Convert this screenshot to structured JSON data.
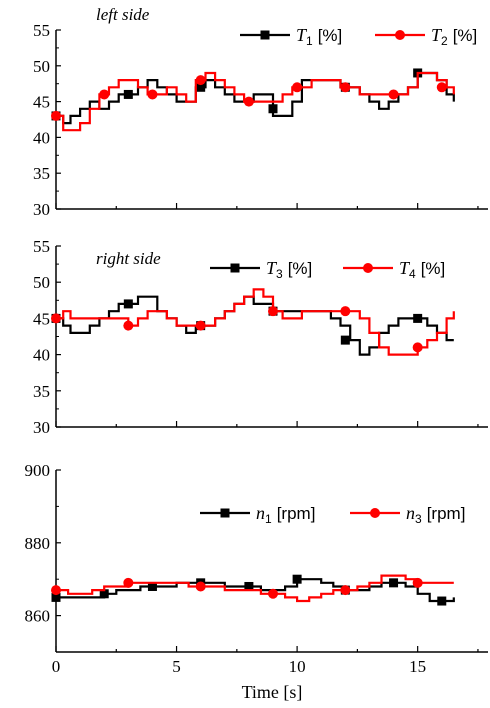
{
  "chart_data": [
    {
      "type": "line",
      "panel_label": "left side",
      "xlim": [
        0,
        18
      ],
      "ylim": [
        30,
        55
      ],
      "yticks": [
        30,
        35,
        40,
        45,
        50,
        55
      ],
      "xticks": [
        0,
        5,
        10,
        15
      ],
      "grid": false,
      "legend_position": "top-right",
      "series": [
        {
          "name_var": "T",
          "name_sub": "1",
          "name_unit": "[%]",
          "color": "#000000",
          "marker": "square",
          "x": [
            0,
            0.3,
            0.6,
            1.0,
            1.4,
            1.8,
            2.2,
            2.6,
            3.0,
            3.4,
            3.8,
            4.2,
            4.6,
            5.0,
            5.4,
            5.8,
            6.2,
            6.6,
            7.0,
            7.4,
            7.8,
            8.2,
            8.6,
            9.0,
            9.4,
            9.8,
            10.2,
            10.6,
            11.0,
            11.4,
            11.8,
            12.2,
            12.6,
            13.0,
            13.4,
            13.8,
            14.2,
            14.6,
            15.0,
            15.4,
            15.8,
            16.2,
            16.5
          ],
          "y": [
            43,
            42,
            43,
            44,
            45,
            44,
            45,
            46,
            46,
            47,
            48,
            47,
            46,
            45,
            45,
            47,
            48,
            47,
            46,
            45,
            45,
            46,
            46,
            43,
            43,
            45,
            48,
            48,
            48,
            48,
            47,
            47,
            46,
            45,
            44,
            45,
            46,
            47,
            49,
            49,
            48,
            46,
            45
          ],
          "marker_x": [
            0,
            3,
            6,
            9,
            12,
            15
          ],
          "marker_y": [
            43,
            46,
            47,
            44,
            47,
            49
          ]
        },
        {
          "name_var": "T",
          "name_sub": "2",
          "name_unit": "[%]",
          "color": "#ff0000",
          "marker": "circle",
          "x": [
            0,
            0.3,
            0.6,
            1.0,
            1.4,
            1.8,
            2.2,
            2.6,
            3.0,
            3.4,
            3.8,
            4.2,
            4.6,
            5.0,
            5.4,
            5.8,
            6.2,
            6.6,
            7.0,
            7.4,
            7.8,
            8.2,
            8.6,
            9.0,
            9.4,
            9.8,
            10.2,
            10.6,
            11.0,
            11.4,
            11.8,
            12.2,
            12.6,
            13.0,
            13.4,
            13.8,
            14.2,
            14.6,
            15.0,
            15.4,
            15.8,
            16.2,
            16.5
          ],
          "y": [
            43,
            41,
            41,
            42,
            44,
            46,
            47,
            48,
            48,
            47,
            46,
            46,
            47,
            46,
            45,
            48,
            49,
            48,
            47,
            46,
            45,
            45,
            45,
            45,
            46,
            47,
            47,
            48,
            48,
            48,
            47,
            47,
            46,
            46,
            46,
            46,
            46,
            47,
            49,
            49,
            48,
            47,
            46
          ],
          "marker_x": [
            0,
            2,
            4,
            6,
            8,
            10,
            12,
            14,
            16
          ],
          "marker_y": [
            43,
            46,
            46,
            48,
            45,
            47,
            47,
            46,
            47
          ]
        }
      ]
    },
    {
      "type": "line",
      "panel_label": "right side",
      "xlim": [
        0,
        18
      ],
      "ylim": [
        30,
        55
      ],
      "yticks": [
        30,
        35,
        40,
        45,
        50,
        55
      ],
      "xticks": [
        0,
        5,
        10,
        15
      ],
      "grid": false,
      "legend_position": "top-right",
      "series": [
        {
          "name_var": "T",
          "name_sub": "3",
          "name_unit": "[%]",
          "color": "#000000",
          "marker": "square",
          "x": [
            0,
            0.3,
            0.6,
            1.0,
            1.4,
            1.8,
            2.2,
            2.6,
            3.0,
            3.4,
            3.8,
            4.2,
            4.6,
            5.0,
            5.4,
            5.8,
            6.2,
            6.6,
            7.0,
            7.4,
            7.8,
            8.2,
            8.6,
            9.0,
            9.4,
            9.8,
            10.2,
            10.6,
            11.0,
            11.4,
            11.8,
            12.2,
            12.6,
            13.0,
            13.4,
            13.8,
            14.2,
            14.6,
            15.0,
            15.4,
            15.8,
            16.2,
            16.5
          ],
          "y": [
            45,
            44,
            43,
            43,
            44,
            45,
            46,
            47,
            47,
            48,
            48,
            46,
            45,
            44,
            43,
            44,
            44,
            45,
            46,
            47,
            48,
            47,
            47,
            46,
            46,
            46,
            46,
            46,
            46,
            45,
            44,
            42,
            40,
            41,
            43,
            44,
            45,
            45,
            45,
            44,
            43,
            42,
            42
          ],
          "marker_x": [
            0,
            3,
            6,
            9,
            12,
            15
          ],
          "marker_y": [
            45,
            47,
            44,
            46,
            42,
            45
          ]
        },
        {
          "name_var": "T",
          "name_sub": "4",
          "name_unit": "[%]",
          "color": "#ff0000",
          "marker": "circle",
          "x": [
            0,
            0.3,
            0.6,
            1.0,
            1.4,
            1.8,
            2.2,
            2.6,
            3.0,
            3.4,
            3.8,
            4.2,
            4.6,
            5.0,
            5.4,
            5.8,
            6.2,
            6.6,
            7.0,
            7.4,
            7.8,
            8.2,
            8.6,
            9.0,
            9.4,
            9.8,
            10.2,
            10.6,
            11.0,
            11.4,
            11.8,
            12.2,
            12.6,
            13.0,
            13.4,
            13.8,
            14.2,
            14.6,
            15.0,
            15.4,
            15.8,
            16.2,
            16.5
          ],
          "y": [
            45,
            46,
            45,
            45,
            45,
            45,
            45,
            45,
            44,
            45,
            46,
            46,
            45,
            44,
            44,
            44,
            44,
            45,
            46,
            47,
            48,
            49,
            48,
            46,
            45,
            45,
            46,
            46,
            46,
            46,
            46,
            46,
            45,
            43,
            41,
            40,
            40,
            40,
            41,
            42,
            43,
            45,
            46
          ],
          "marker_x": [
            0,
            3,
            6,
            9,
            12,
            15
          ],
          "marker_y": [
            45,
            44,
            44,
            46,
            46,
            41
          ]
        }
      ]
    },
    {
      "type": "line",
      "panel_label": "",
      "xlabel": "Time [s]",
      "xlim": [
        0,
        18
      ],
      "ylim": [
        850,
        900
      ],
      "yticks": [
        860,
        880,
        900
      ],
      "xticks": [
        0,
        5,
        10,
        15
      ],
      "grid": false,
      "legend_position": "top-right",
      "series": [
        {
          "name_var": "n",
          "name_sub": "1",
          "name_unit": "[rpm]",
          "color": "#000000",
          "marker": "square",
          "x": [
            0,
            0.5,
            1.0,
            1.5,
            2.0,
            2.5,
            3.0,
            3.5,
            4.0,
            4.5,
            5.0,
            5.5,
            6.0,
            6.5,
            7.0,
            7.5,
            8.0,
            8.5,
            9.0,
            9.5,
            10.0,
            10.5,
            11.0,
            11.5,
            12.0,
            12.5,
            13.0,
            13.5,
            14.0,
            14.5,
            15.0,
            15.5,
            16.0,
            16.5
          ],
          "y": [
            865,
            865,
            865,
            865,
            866,
            867,
            867,
            868,
            868,
            868,
            869,
            869,
            869,
            869,
            868,
            868,
            868,
            867,
            867,
            868,
            870,
            870,
            869,
            868,
            867,
            867,
            868,
            869,
            869,
            868,
            866,
            864,
            864,
            865
          ],
          "marker_x": [
            0,
            2,
            4,
            6,
            8,
            10,
            12,
            14,
            16
          ],
          "marker_y": [
            865,
            866,
            868,
            869,
            868,
            870,
            867,
            869,
            864
          ]
        },
        {
          "name_var": "n",
          "name_sub": "3",
          "name_unit": "[rpm]",
          "color": "#ff0000",
          "marker": "circle",
          "x": [
            0,
            0.5,
            1.0,
            1.5,
            2.0,
            2.5,
            3.0,
            3.5,
            4.0,
            4.5,
            5.0,
            5.5,
            6.0,
            6.5,
            7.0,
            7.5,
            8.0,
            8.5,
            9.0,
            9.5,
            10.0,
            10.5,
            11.0,
            11.5,
            12.0,
            12.5,
            13.0,
            13.5,
            14.0,
            14.5,
            15.0,
            15.5,
            16.0,
            16.5
          ],
          "y": [
            867,
            866,
            866,
            867,
            868,
            868,
            869,
            869,
            869,
            869,
            869,
            868,
            868,
            868,
            867,
            867,
            867,
            866,
            866,
            865,
            864,
            865,
            866,
            867,
            867,
            868,
            869,
            871,
            871,
            870,
            869,
            869,
            869,
            869
          ],
          "marker_x": [
            0,
            3,
            6,
            9,
            12,
            15
          ],
          "marker_y": [
            867,
            869,
            868,
            866,
            867,
            869
          ]
        }
      ]
    }
  ]
}
